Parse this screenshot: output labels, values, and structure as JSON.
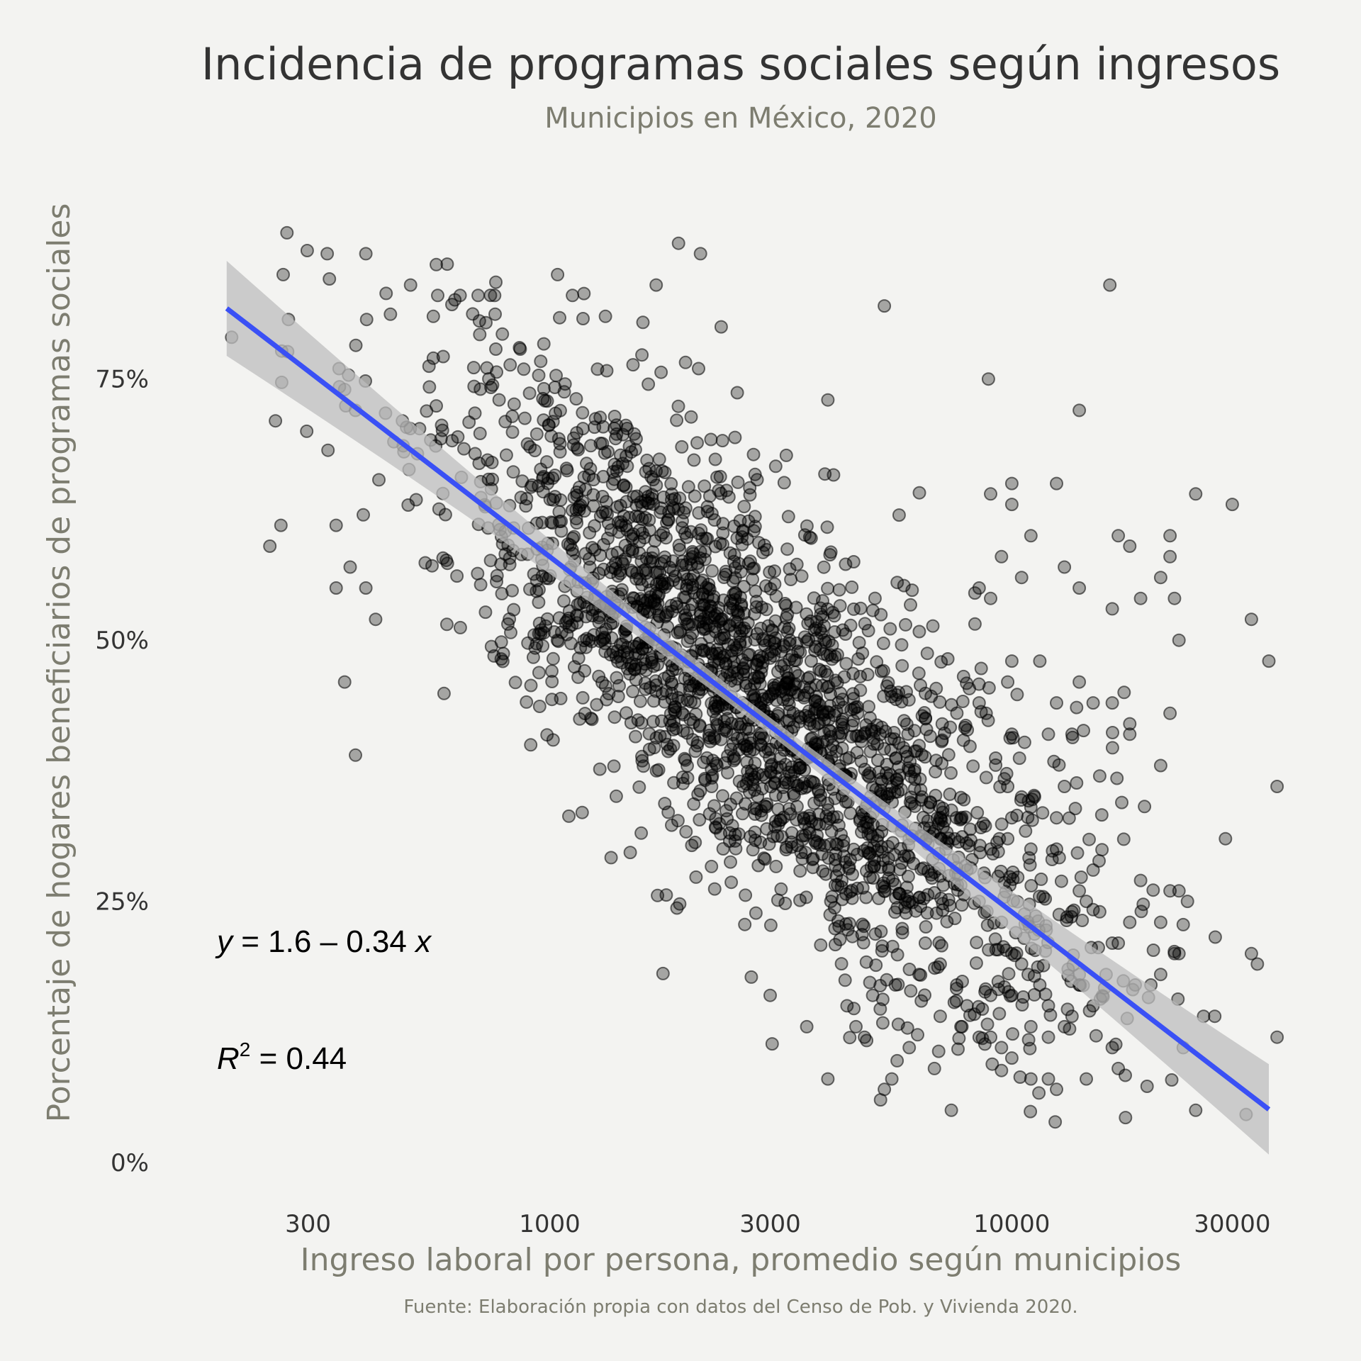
{
  "chart_data": {
    "type": "scatter",
    "title": "Incidencia de programas sociales según ingresos",
    "subtitle": "Municipios en México, 2020",
    "xlabel": "Ingreso laboral por persona, promedio según municipios",
    "ylabel": "Porcentaje de hogares beneficiarios de programas sociales",
    "caption": "Fuente: Elaboración propia con datos del Censo de Pob. y Vivienda 2020.",
    "x_scale": "log10",
    "xlim": [
      180,
      36000
    ],
    "ylim": [
      0,
      0.95
    ],
    "x_ticks": [
      300,
      1000,
      3000,
      10000,
      30000
    ],
    "x_tick_labels": [
      "300",
      "1000",
      "3000",
      "10000",
      "30000"
    ],
    "y_ticks": [
      0,
      0.25,
      0.5,
      0.75
    ],
    "y_tick_labels": [
      "0%",
      "25%",
      "50%",
      "75%"
    ],
    "grid": false,
    "point_color": "#000000",
    "point_alpha": 0.3,
    "n_points": 2460,
    "points": [
      [
        205,
        0.79
      ],
      [
        270,
        0.89
      ],
      [
        265,
        0.85
      ],
      [
        330,
        0.87
      ],
      [
        255,
        0.71
      ],
      [
        298,
        0.7
      ],
      [
        262,
        0.61
      ],
      [
        248,
        0.59
      ],
      [
        380,
        0.72
      ],
      [
        400,
        0.87
      ],
      [
        360,
        0.74
      ],
      [
        350,
        0.76
      ],
      [
        395,
        0.62
      ],
      [
        370,
        0.57
      ],
      [
        400,
        0.55
      ],
      [
        420,
        0.52
      ],
      [
        345,
        0.55
      ],
      [
        345,
        0.61
      ],
      [
        360,
        0.46
      ],
      [
        380,
        0.39
      ],
      [
        460,
        0.69
      ],
      [
        480,
        0.71
      ],
      [
        500,
        0.84
      ],
      [
        560,
        0.81
      ],
      [
        560,
        0.77
      ],
      [
        600,
        0.86
      ],
      [
        640,
        0.83
      ],
      [
        700,
        0.83
      ],
      [
        760,
        0.83
      ],
      [
        1040,
        0.85
      ],
      [
        1120,
        0.83
      ],
      [
        1320,
        0.81
      ],
      [
        1700,
        0.84
      ],
      [
        1900,
        0.88
      ],
      [
        2120,
        0.87
      ],
      [
        2350,
        0.8
      ],
      [
        5300,
        0.82
      ],
      [
        16300,
        0.84
      ],
      [
        8900,
        0.75
      ],
      [
        4000,
        0.73
      ],
      [
        14000,
        0.72
      ],
      [
        2100,
        0.76
      ],
      [
        9000,
        0.64
      ],
      [
        10000,
        0.65
      ],
      [
        10000,
        0.63
      ],
      [
        12500,
        0.65
      ],
      [
        25000,
        0.64
      ],
      [
        30000,
        0.63
      ],
      [
        10500,
        0.56
      ],
      [
        9500,
        0.58
      ],
      [
        11000,
        0.6
      ],
      [
        13000,
        0.57
      ],
      [
        14000,
        0.55
      ],
      [
        17000,
        0.6
      ],
      [
        18000,
        0.59
      ],
      [
        19000,
        0.54
      ],
      [
        21000,
        0.56
      ],
      [
        22000,
        0.6
      ],
      [
        22000,
        0.58
      ],
      [
        22500,
        0.54
      ],
      [
        23000,
        0.5
      ],
      [
        9000,
        0.54
      ],
      [
        8500,
        0.55
      ],
      [
        10000,
        0.48
      ],
      [
        11500,
        0.48
      ],
      [
        9800,
        0.46
      ],
      [
        12500,
        0.44
      ],
      [
        14000,
        0.46
      ],
      [
        15000,
        0.44
      ],
      [
        16500,
        0.44
      ],
      [
        17500,
        0.45
      ],
      [
        16500,
        0.53
      ],
      [
        33000,
        0.52
      ],
      [
        36000,
        0.48
      ],
      [
        8500,
        0.44
      ],
      [
        8800,
        0.43
      ],
      [
        10000,
        0.41
      ],
      [
        12000,
        0.41
      ],
      [
        13500,
        0.41
      ],
      [
        18000,
        0.42
      ],
      [
        18000,
        0.41
      ],
      [
        21000,
        0.38
      ],
      [
        22000,
        0.43
      ],
      [
        15500,
        0.37
      ],
      [
        13000,
        0.36
      ],
      [
        37500,
        0.36
      ],
      [
        9800,
        0.36
      ],
      [
        10500,
        0.35
      ],
      [
        11000,
        0.34
      ],
      [
        11200,
        0.35
      ],
      [
        10000,
        0.33
      ],
      [
        12500,
        0.33
      ],
      [
        9800,
        0.31
      ],
      [
        9000,
        0.3
      ],
      [
        9400,
        0.31
      ],
      [
        11000,
        0.3
      ],
      [
        12500,
        0.3
      ],
      [
        15000,
        0.28
      ],
      [
        19000,
        0.27
      ],
      [
        22000,
        0.26
      ],
      [
        23000,
        0.26
      ],
      [
        24000,
        0.25
      ],
      [
        29000,
        0.31
      ],
      [
        14000,
        0.26
      ],
      [
        14500,
        0.25
      ],
      [
        13500,
        0.24
      ],
      [
        15500,
        0.24
      ],
      [
        18000,
        0.23
      ],
      [
        21000,
        0.23
      ],
      [
        17000,
        0.21
      ],
      [
        16500,
        0.21
      ],
      [
        22500,
        0.2
      ],
      [
        23000,
        0.2
      ],
      [
        21000,
        0.18
      ],
      [
        20000,
        0.17
      ],
      [
        18500,
        0.17
      ],
      [
        33000,
        0.2
      ],
      [
        34000,
        0.19
      ],
      [
        26000,
        0.14
      ],
      [
        27500,
        0.14
      ],
      [
        23500,
        0.11
      ],
      [
        25000,
        0.05
      ],
      [
        37500,
        0.12
      ],
      [
        16500,
        0.11
      ],
      [
        17000,
        0.09
      ],
      [
        14500,
        0.08
      ],
      [
        12500,
        0.07
      ],
      [
        12000,
        0.08
      ],
      [
        11000,
        0.08
      ],
      [
        12000,
        0.12
      ],
      [
        13000,
        0.13
      ],
      [
        13500,
        0.14
      ],
      [
        14000,
        0.18
      ],
      [
        16000,
        0.18
      ],
      [
        15000,
        0.15
      ],
      [
        14000,
        0.17
      ],
      [
        11500,
        0.17
      ],
      [
        10500,
        0.19
      ],
      [
        10000,
        0.2
      ],
      [
        10200,
        0.22
      ],
      [
        9500,
        0.23
      ],
      [
        8500,
        0.25
      ],
      [
        8000,
        0.28
      ],
      [
        8200,
        0.29
      ],
      [
        7000,
        0.31
      ],
      [
        7200,
        0.3
      ],
      [
        6000,
        0.31
      ],
      [
        6000,
        0.25
      ],
      [
        5800,
        0.22
      ],
      [
        6500,
        0.21
      ],
      [
        7000,
        0.19
      ],
      [
        7600,
        0.17
      ],
      [
        8000,
        0.15
      ],
      [
        8500,
        0.12
      ],
      [
        9000,
        0.12
      ],
      [
        9500,
        0.11
      ],
      [
        10000,
        0.1
      ],
      [
        6000,
        0.11
      ],
      [
        5500,
        0.08
      ],
      [
        5300,
        0.07
      ],
      [
        5200,
        0.06
      ],
      [
        6800,
        0.09
      ],
      [
        7400,
        0.05
      ],
      [
        4000,
        0.08
      ],
      [
        4600,
        0.13
      ],
      [
        3600,
        0.13
      ],
      [
        3000,
        0.16
      ],
      [
        4800,
        0.12
      ],
      [
        5000,
        0.16
      ],
      [
        4400,
        0.15
      ],
      [
        5600,
        0.17
      ],
      [
        6300,
        0.18
      ],
      [
        7000,
        0.14
      ],
      [
        7800,
        0.13
      ],
      [
        9000,
        0.16
      ],
      [
        10000,
        0.16
      ],
      [
        11000,
        0.13
      ],
      [
        12000,
        0.15
      ]
    ],
    "fit": {
      "type": "linear",
      "model": "y = 1.6 - 0.34 * log10(x)",
      "intercept": 1.6,
      "slope": -0.34,
      "x_range": [
        200,
        36000
      ],
      "line_color": "#3a50f5",
      "band_color": "#bdbdbd"
    },
    "annotations": [
      {
        "label": "equation",
        "text_prefix": "y",
        "text_body": " = 1.6 – 0.34 ",
        "text_suffix": "x"
      },
      {
        "label": "r_squared",
        "text_prefix": "R",
        "text_sup": "2",
        "text_body": " = 0.44"
      }
    ]
  }
}
